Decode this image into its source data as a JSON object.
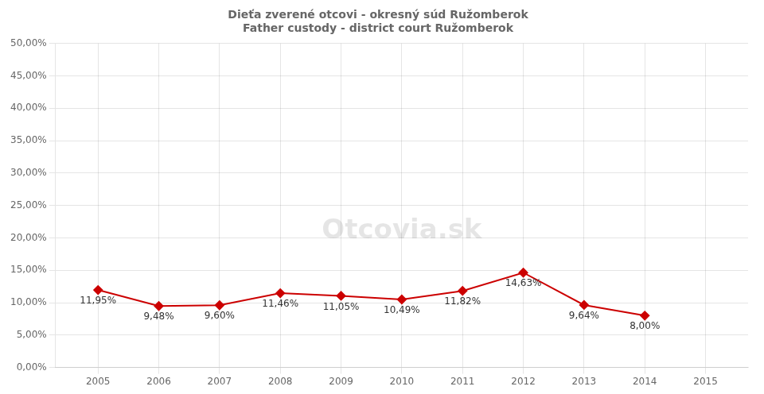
{
  "chart_data": {
    "type": "line",
    "title": [
      "Dieťa zverené otcovi - okresný súd Ružomberok",
      "Father custody - district court Ružomberok"
    ],
    "x": [
      2005,
      2006,
      2007,
      2008,
      2009,
      2010,
      2011,
      2012,
      2013,
      2014
    ],
    "values": [
      0.1195,
      0.0948,
      0.096,
      0.1146,
      0.1105,
      0.1049,
      0.1182,
      0.1463,
      0.0964,
      0.08
    ],
    "value_labels": [
      "11,95%",
      "9,48%",
      "9,60%",
      "11,46%",
      "11,05%",
      "10,49%",
      "11,82%",
      "14,63%",
      "9,64%",
      "8,00%"
    ],
    "data_labels": true,
    "color": "#cc0000",
    "marker": "diamond",
    "xlim": [
      2004.3,
      2015.7
    ],
    "xticks": [
      2005,
      2006,
      2007,
      2008,
      2009,
      2010,
      2011,
      2012,
      2013,
      2014,
      2015
    ],
    "ylim": [
      0.0,
      0.5
    ],
    "yticks": [
      {
        "value": 0.0,
        "label": "0,00%"
      },
      {
        "value": 0.05,
        "label": "5,00%"
      },
      {
        "value": 0.1,
        "label": "10,00%"
      },
      {
        "value": 0.15,
        "label": "15,00%"
      },
      {
        "value": 0.2,
        "label": "20,00%"
      },
      {
        "value": 0.25,
        "label": "25,00%"
      },
      {
        "value": 0.3,
        "label": "30,00%"
      },
      {
        "value": 0.35,
        "label": "35,00%"
      },
      {
        "value": 0.4,
        "label": "40,00%"
      },
      {
        "value": 0.45,
        "label": "45,00%"
      },
      {
        "value": 0.5,
        "label": "50,00%"
      }
    ],
    "grid": true,
    "annotations": [
      "Otcovia.sk"
    ]
  }
}
